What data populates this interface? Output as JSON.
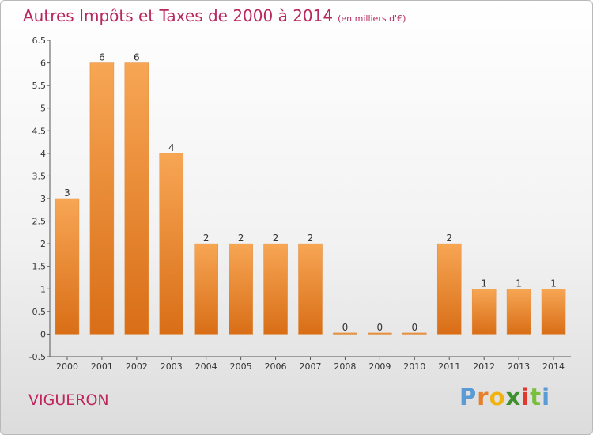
{
  "header": {
    "title": "Autres Impôts et Taxes de 2000 à 2014",
    "unit": "(en milliers d'€)"
  },
  "footer": {
    "commune": "VIGUERON",
    "logo_letters": [
      "P",
      "r",
      "o",
      "x",
      "i",
      "t",
      "i"
    ]
  },
  "colors": {
    "title": "#b8285e",
    "bar_light": "#f7a654",
    "bar_dark": "#d96e17",
    "logo": [
      "#5b9bd5",
      "#e87e2a",
      "#f2b20d",
      "#3f8f2f",
      "#e03a2f",
      "#7abf3b",
      "#5b9bd5"
    ]
  },
  "chart_data": {
    "type": "bar",
    "categories": [
      "2000",
      "2001",
      "2002",
      "2003",
      "2004",
      "2005",
      "2006",
      "2007",
      "2008",
      "2009",
      "2010",
      "2011",
      "2012",
      "2013",
      "2014"
    ],
    "values": [
      3,
      6,
      6,
      4,
      2,
      2,
      2,
      2,
      0,
      0,
      0,
      2,
      1,
      1,
      1
    ],
    "data_labels": [
      "3",
      "6",
      "6",
      "4",
      "2",
      "2",
      "2",
      "2",
      "0",
      "0",
      "0",
      "2",
      "1",
      "1",
      "1"
    ],
    "yticks": [
      "-0.5",
      "0",
      "0.5",
      "1",
      "1.5",
      "2",
      "2.5",
      "3",
      "3.5",
      "4",
      "4.5",
      "5",
      "5.5",
      "6",
      "6.5"
    ],
    "ylim": [
      -0.5,
      6.5
    ],
    "title": "Autres Impôts et Taxes de 2000 à 2014",
    "xlabel": "",
    "ylabel": "",
    "grid": false,
    "legend": "none"
  }
}
